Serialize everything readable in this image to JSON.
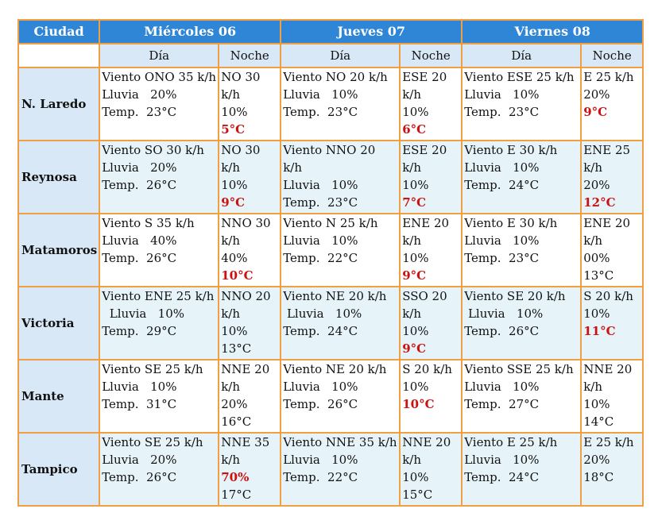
{
  "headers": {
    "city": "Ciudad",
    "days": [
      "Miércoles 06",
      "Jueves 07",
      "Viernes 08"
    ],
    "dia": "Día",
    "noche": "Noche"
  },
  "rows": [
    {
      "city": "N. Laredo",
      "d0": {
        "day": [
          "Viento  ONO 35 k/h",
          "Lluvia   20%",
          "Temp.  23°C"
        ],
        "night": [
          "NO 30 k/h",
          "10%",
          "5°C"
        ]
      },
      "d1": {
        "day": [
          "Viento  NO 20 k/h",
          "Lluvia   10%",
          "Temp.  23°C"
        ],
        "night": [
          "ESE 20 k/h",
          "10%",
          "6°C"
        ]
      },
      "d2": {
        "day": [
          "Viento  ESE 25 k/h",
          "Lluvia   10%",
          "Temp.  23°C"
        ],
        "night": [
          "E 25 k/h",
          "20%",
          "9°C"
        ]
      }
    },
    {
      "city": "Reynosa",
      "d0": {
        "day": [
          "Viento  SO 30 k/h",
          "Lluvia   20%",
          "Temp.  26°C"
        ],
        "night": [
          "NO 30 k/h",
          "10%",
          "9°C"
        ]
      },
      "d1": {
        "day": [
          "Viento  NNO 20 k/h",
          "Lluvia   10%",
          "Temp.  23°C"
        ],
        "night": [
          "ESE 20 k/h",
          "10%",
          "7°C"
        ]
      },
      "d2": {
        "day": [
          "Viento  E 30 k/h",
          "Lluvia   10%",
          "Temp.  24°C"
        ],
        "night": [
          "ENE 25 k/h",
          "20%",
          "12°C"
        ]
      }
    },
    {
      "city": "Matamoros",
      "d0": {
        "day": [
          "Viento  S 35 k/h",
          "Lluvia   40%",
          "Temp.  26°C"
        ],
        "night": [
          "NNO 30 k/h",
          "40%",
          "10°C"
        ]
      },
      "d1": {
        "day": [
          "Viento  N 25 k/h",
          "Lluvia   10%",
          "Temp.  22°C"
        ],
        "night": [
          "ENE 20 k/h",
          "10%",
          "9°C"
        ]
      },
      "d2": {
        "day": [
          "Viento  E 30 k/h",
          "Lluvia   10%",
          "Temp.  23°C"
        ],
        "night": [
          "ENE 20 k/h",
          "00%",
          "13°C"
        ]
      }
    },
    {
      "city": "Victoria",
      "d0": {
        "day": [
          "Viento  ENE 25 k/h",
          "  Lluvia   10%",
          "Temp.  29°C"
        ],
        "night": [
          "NNO 20 k/h",
          "10%",
          "13°C"
        ]
      },
      "d1": {
        "day": [
          "Viento  NE 20 k/h",
          " Lluvia   10%",
          "Temp.  24°C"
        ],
        "night": [
          "SSO 20 k/h",
          "10%",
          "9°C"
        ]
      },
      "d2": {
        "day": [
          "Viento  SE 20 k/h",
          " Lluvia   10%",
          "Temp.  26°C"
        ],
        "night": [
          "S 20 k/h",
          "10%",
          "11°C"
        ]
      }
    },
    {
      "city": "Mante",
      "d0": {
        "day": [
          "Viento  SE 25 k/h",
          "Lluvia   10%",
          "Temp.  31°C"
        ],
        "night": [
          "NNE 20 k/h",
          "20%",
          "16°C"
        ]
      },
      "d1": {
        "day": [
          "Viento  NE 20 k/h",
          "Lluvia   10%",
          "Temp.  26°C"
        ],
        "night": [
          "S 20 k/h",
          "10%",
          "10°C"
        ]
      },
      "d2": {
        "day": [
          "Viento  SSE 25 k/h",
          "Lluvia   10%",
          "Temp.  27°C"
        ],
        "night": [
          "NNE 20 k/h",
          "10%",
          "14°C"
        ]
      }
    },
    {
      "city": "Tampico",
      "d0": {
        "day": [
          "Viento  SE 25 k/h",
          "Lluvia   20%",
          "Temp.  26°C"
        ],
        "night": [
          "NNE 35 k/h",
          "70%",
          "17°C"
        ]
      },
      "d1": {
        "day": [
          "Viento  NNE 35 k/h",
          "Lluvia   10%",
          "Temp.  22°C"
        ],
        "night": [
          "NNE 20 k/h",
          "10%",
          "15°C"
        ]
      },
      "d2": {
        "day": [
          "Viento  E 25 k/h",
          "Lluvia   10%",
          "Temp.  24°C"
        ],
        "night": [
          "E 25 k/h",
          "20%",
          "18°C"
        ]
      }
    }
  ],
  "colors": {
    "header": "#2f86d6",
    "subheader": "#d8e8f7",
    "border": "#f0a040",
    "alert": "#cc1111",
    "shade": "#e6f4fa"
  }
}
